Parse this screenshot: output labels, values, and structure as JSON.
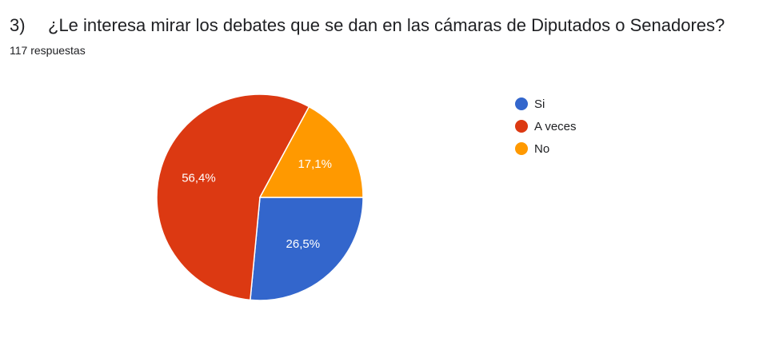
{
  "question": {
    "number": "3)",
    "text": "¿Le interesa mirar los debates que se dan en las cámaras de Diputados o Senadores?"
  },
  "responses": "117 respuestas",
  "chart_data": {
    "type": "pie",
    "title": "",
    "legend_position": "right",
    "slices": [
      {
        "name": "Si",
        "value": 26.5,
        "label": "26,5%",
        "color": "#3366cc"
      },
      {
        "name": "A veces",
        "value": 56.4,
        "label": "56,4%",
        "color": "#dc3912"
      },
      {
        "name": "No",
        "value": 17.1,
        "label": "17,1%",
        "color": "#ff9900"
      }
    ]
  }
}
